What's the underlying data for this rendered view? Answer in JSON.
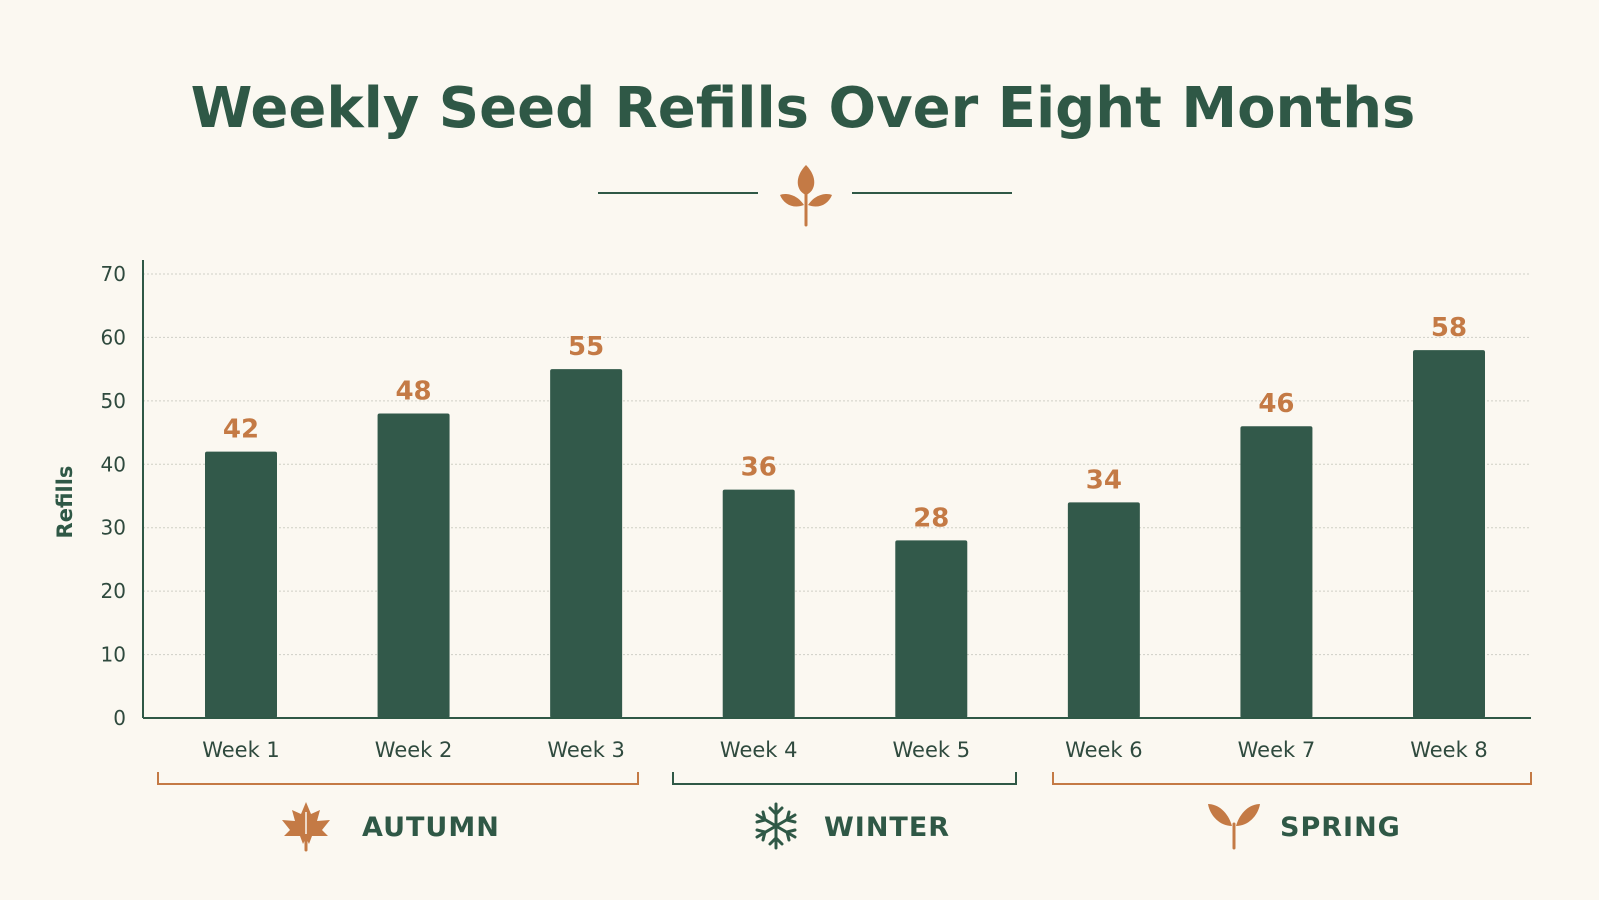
{
  "chart_data": {
    "type": "bar",
    "title": "Weekly Seed Refills Over Eight Months",
    "xlabel": "",
    "ylabel": "Refills",
    "ylim": [
      0,
      70
    ],
    "yticks": [
      "0",
      "10",
      "20",
      "30",
      "40",
      "50",
      "60",
      "70"
    ],
    "grid": true,
    "categories": [
      "Week 1",
      "Week 2",
      "Week 3",
      "Week 4",
      "Week 5",
      "Week 6",
      "Week 7",
      "Week 8"
    ],
    "values": [
      42,
      48,
      55,
      36,
      28,
      34,
      46,
      58
    ],
    "value_labels": [
      "42",
      "48",
      "55",
      "36",
      "28",
      "34",
      "46",
      "58"
    ],
    "groups": [
      {
        "label": "AUTUMN",
        "icon": "maple-leaf-icon",
        "categories": [
          "Week 1",
          "Week 2",
          "Week 3"
        ],
        "color": "#c47a45"
      },
      {
        "label": "WINTER",
        "icon": "snowflake-icon",
        "categories": [
          "Week 4",
          "Week 5"
        ],
        "color": "#2f5846"
      },
      {
        "label": "SPRING",
        "icon": "sprout-icon",
        "categories": [
          "Week 6",
          "Week 7",
          "Week 8"
        ],
        "color": "#c47a45"
      }
    ]
  },
  "decoration": {
    "divider_icon": "sprout-icon"
  },
  "colors": {
    "background": "#fbf8f1",
    "bar": "#32594a",
    "title": "#2f5846",
    "value_label": "#c47a45",
    "axis": "#2f5846",
    "grid": "#cfcfc6",
    "accent": "#c47a45"
  }
}
